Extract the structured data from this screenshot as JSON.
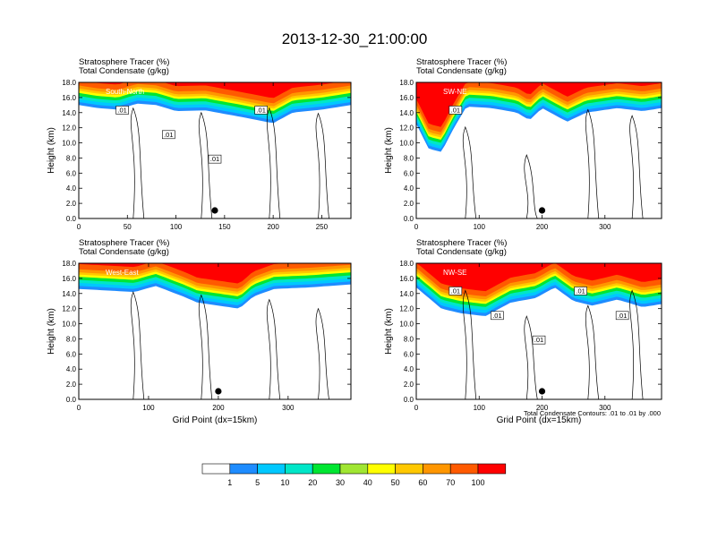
{
  "figure": {
    "title": "2013-12-30_21:00:00",
    "contour_note": "Total Condensate Contours: .01 to .01 by .000"
  },
  "chart_data": [
    {
      "type": "heatmap",
      "panel": "South-North",
      "header_lines": [
        "Stratosphere Tracer   (%)",
        "Total Condensate   (g/kg)"
      ],
      "ylabel": "Height (km)",
      "xlabel": "",
      "x_ticks": [
        "0",
        "50",
        "100",
        "150",
        "200",
        "250"
      ],
      "y_ticks": [
        "0.0",
        "2.0",
        "4.0",
        "6.0",
        "8.0",
        "10.0",
        "12.0",
        "14.0",
        "16.0",
        "18.0"
      ],
      "xlim": [
        0,
        280
      ],
      "ylim": [
        0,
        18
      ],
      "marker_x": 140,
      "contour_labels": [
        ".01",
        ".01",
        ".01",
        ".01"
      ],
      "tracer_base_km": [
        [
          0,
          15.0
        ],
        [
          20,
          14.6
        ],
        [
          40,
          14.4
        ],
        [
          60,
          15.2
        ],
        [
          80,
          15.0
        ],
        [
          100,
          14.2
        ],
        [
          130,
          14.3
        ],
        [
          160,
          13.6
        ],
        [
          200,
          12.6
        ],
        [
          220,
          14.0
        ],
        [
          250,
          14.4
        ],
        [
          280,
          15.0
        ]
      ]
    },
    {
      "type": "heatmap",
      "panel": "SW-NE",
      "header_lines": [
        "Stratosphere Tracer   (%)",
        "Total Condensate   (g/kg)"
      ],
      "ylabel": "Height (km)",
      "xlabel": "",
      "x_ticks": [
        "0",
        "100",
        "200",
        "300"
      ],
      "y_ticks": [
        "0.0",
        "2.0",
        "4.0",
        "6.0",
        "8.0",
        "10.0",
        "12.0",
        "14.0",
        "16.0",
        "18.0"
      ],
      "xlim": [
        0,
        390
      ],
      "ylim": [
        0,
        18
      ],
      "marker_x": 200,
      "contour_labels": [
        ".01"
      ],
      "tracer_base_km": [
        [
          0,
          12.5
        ],
        [
          20,
          9.2
        ],
        [
          40,
          8.8
        ],
        [
          60,
          12.0
        ],
        [
          80,
          14.8
        ],
        [
          120,
          14.6
        ],
        [
          160,
          14.0
        ],
        [
          180,
          13.0
        ],
        [
          200,
          14.6
        ],
        [
          240,
          12.8
        ],
        [
          270,
          14.0
        ],
        [
          320,
          14.6
        ],
        [
          360,
          14.2
        ],
        [
          390,
          14.6
        ]
      ]
    },
    {
      "type": "heatmap",
      "panel": "West-East",
      "header_lines": [
        "Stratosphere Tracer   (%)",
        "Total Condensate   (g/kg)"
      ],
      "ylabel": "Height (km)",
      "xlabel": "Grid Point (dx=15km)",
      "x_ticks": [
        "0",
        "100",
        "200",
        "300"
      ],
      "y_ticks": [
        "0.0",
        "2.0",
        "4.0",
        "6.0",
        "8.0",
        "10.0",
        "12.0",
        "14.0",
        "16.0",
        "18.0"
      ],
      "xlim": [
        0,
        390
      ],
      "ylim": [
        0,
        18
      ],
      "marker_x": 200,
      "contour_labels": [],
      "tracer_base_km": [
        [
          0,
          14.6
        ],
        [
          40,
          14.4
        ],
        [
          80,
          14.2
        ],
        [
          110,
          15.0
        ],
        [
          150,
          13.6
        ],
        [
          170,
          12.8
        ],
        [
          200,
          12.4
        ],
        [
          230,
          12.0
        ],
        [
          250,
          13.6
        ],
        [
          280,
          14.6
        ],
        [
          330,
          14.8
        ],
        [
          390,
          15.2
        ]
      ]
    },
    {
      "type": "heatmap",
      "panel": "NW-SE",
      "header_lines": [
        "Stratosphere Tracer   (%)",
        "Total Condensate   (g/kg)"
      ],
      "ylabel": "Height (km)",
      "xlabel": "Grid Point (dx=15km)",
      "x_ticks": [
        "0",
        "100",
        "200",
        "300"
      ],
      "y_ticks": [
        "0.0",
        "2.0",
        "4.0",
        "6.0",
        "8.0",
        "10.0",
        "12.0",
        "14.0",
        "16.0",
        "18.0"
      ],
      "xlim": [
        0,
        390
      ],
      "ylim": [
        0,
        18
      ],
      "marker_x": 200,
      "contour_labels": [
        ".01",
        ".01",
        ".01",
        ".01",
        ".01"
      ],
      "tracer_base_km": [
        [
          0,
          14.8
        ],
        [
          40,
          12.0
        ],
        [
          70,
          11.4
        ],
        [
          110,
          11.0
        ],
        [
          150,
          12.8
        ],
        [
          190,
          13.4
        ],
        [
          220,
          14.8
        ],
        [
          250,
          13.0
        ],
        [
          280,
          12.4
        ],
        [
          320,
          13.2
        ],
        [
          360,
          12.2
        ],
        [
          390,
          12.6
        ]
      ]
    }
  ],
  "colorbar": {
    "labels": [
      "1",
      "5",
      "10",
      "20",
      "30",
      "40",
      "50",
      "60",
      "70",
      "100"
    ],
    "colors": [
      "#ffffff",
      "#1e8cff",
      "#00c8ff",
      "#00e6c8",
      "#00e632",
      "#a0e632",
      "#ffff00",
      "#ffc800",
      "#ff9600",
      "#ff5a00",
      "#ff0000"
    ]
  }
}
